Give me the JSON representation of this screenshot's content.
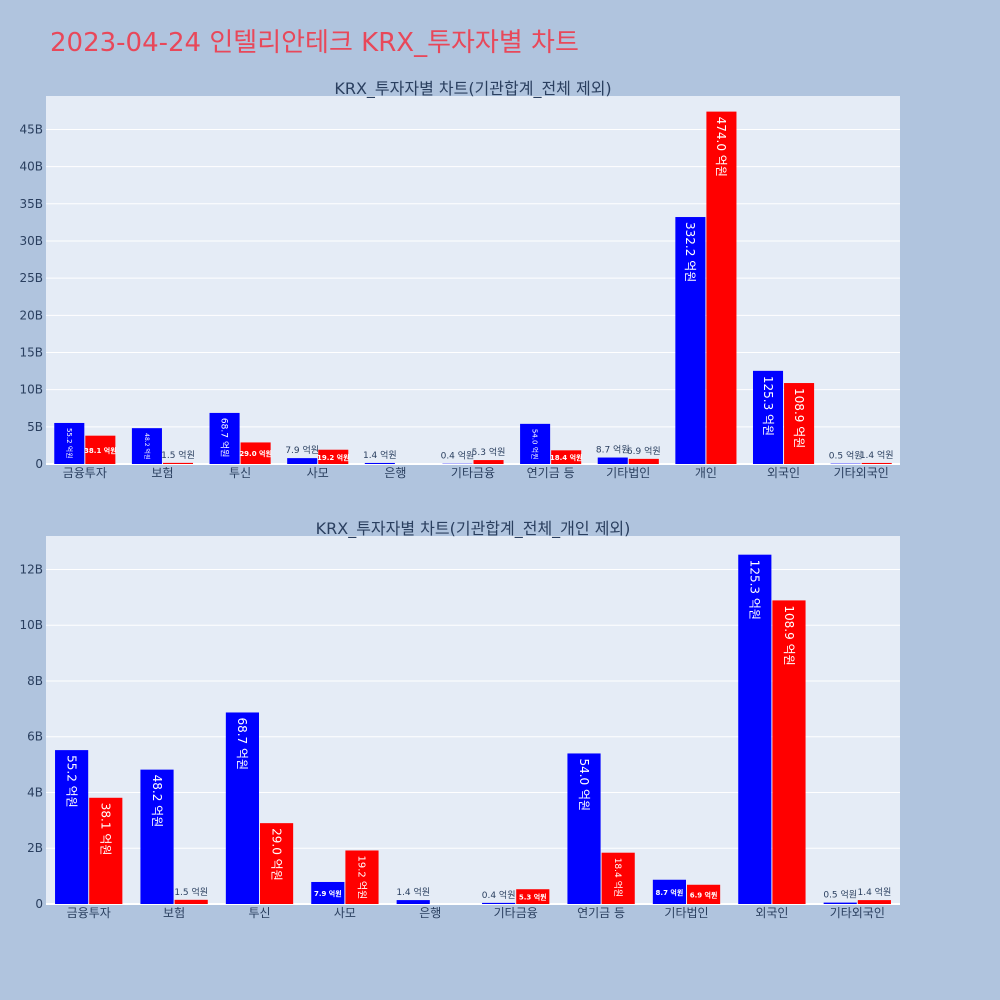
{
  "page": {
    "title": "2023-04-24 인텔리안테크 KRX_투자자별 차트"
  },
  "colors": {
    "background": "#b0c4de",
    "plot_bg": "#e5ecf6",
    "series_blue": "#0000ff",
    "series_red": "#ff0000",
    "title_color": "#e8485a"
  },
  "chart_data": [
    {
      "type": "bar",
      "title": "KRX_투자자별 차트(기관합계_전체 제외)",
      "categories": [
        "금융투자",
        "보험",
        "투신",
        "사모",
        "은행",
        "기타금융",
        "연기금 등",
        "기타법인",
        "개인",
        "외국인",
        "기타외국인"
      ],
      "series": [
        {
          "values": [
            5.52,
            4.82,
            6.87,
            0.79,
            0.14,
            0.04,
            5.4,
            0.87,
            33.22,
            12.53,
            0.05
          ],
          "labels": [
            "55.2 억원",
            "48.2 억원",
            "68.7 억원",
            "7.9 억원",
            "1.4 억원",
            "0.4 억원",
            "54.0 억원",
            "8.7 억원",
            "332.2 억원",
            "125.3 억원",
            "0.5 억원"
          ]
        },
        {
          "values": [
            3.81,
            0.15,
            2.9,
            1.92,
            0.0,
            0.53,
            1.84,
            0.69,
            47.4,
            10.89,
            0.14
          ],
          "labels": [
            "38.1 억원",
            "1.5 억원",
            "29.0 억원",
            "19.2 억원",
            "",
            "5.3 억원",
            "18.4 억원",
            "6.9 억원",
            "474.0 억원",
            "108.9 억원",
            "1.4 억원"
          ]
        }
      ],
      "yticks": [
        0,
        5,
        10,
        15,
        20,
        25,
        30,
        35,
        40,
        45
      ],
      "ytick_labels": [
        "0",
        "5B",
        "10B",
        "15B",
        "20B",
        "25B",
        "30B",
        "35B",
        "40B",
        "45B"
      ],
      "ylim": [
        0,
        49.5
      ],
      "grid": true
    },
    {
      "type": "bar",
      "title": "KRX_투자자별 차트(기관합계_전체_개인 제외)",
      "categories": [
        "금융투자",
        "보험",
        "투신",
        "사모",
        "은행",
        "기타금융",
        "연기금 등",
        "기타법인",
        "외국인",
        "기타외국인"
      ],
      "series": [
        {
          "values": [
            5.52,
            4.82,
            6.87,
            0.79,
            0.14,
            0.04,
            5.4,
            0.87,
            12.53,
            0.05
          ],
          "labels": [
            "55.2 억원",
            "48.2 억원",
            "68.7 억원",
            "7.9 억원",
            "1.4 억원",
            "0.4 억원",
            "54.0 억원",
            "8.7 억원",
            "125.3 억원",
            "0.5 억원"
          ]
        },
        {
          "values": [
            3.81,
            0.15,
            2.9,
            1.92,
            0.0,
            0.53,
            1.84,
            0.69,
            10.89,
            0.14
          ],
          "labels": [
            "38.1 억원",
            "1.5 억원",
            "29.0 억원",
            "19.2 억원",
            "",
            "5.3 억원",
            "18.4 억원",
            "6.9 억원",
            "108.9 억원",
            "1.4 억원"
          ]
        }
      ],
      "yticks": [
        0,
        2,
        4,
        6,
        8,
        10,
        12
      ],
      "ytick_labels": [
        "0",
        "2B",
        "4B",
        "6B",
        "8B",
        "10B",
        "12B"
      ],
      "ylim": [
        0,
        13.2
      ],
      "grid": true
    }
  ]
}
